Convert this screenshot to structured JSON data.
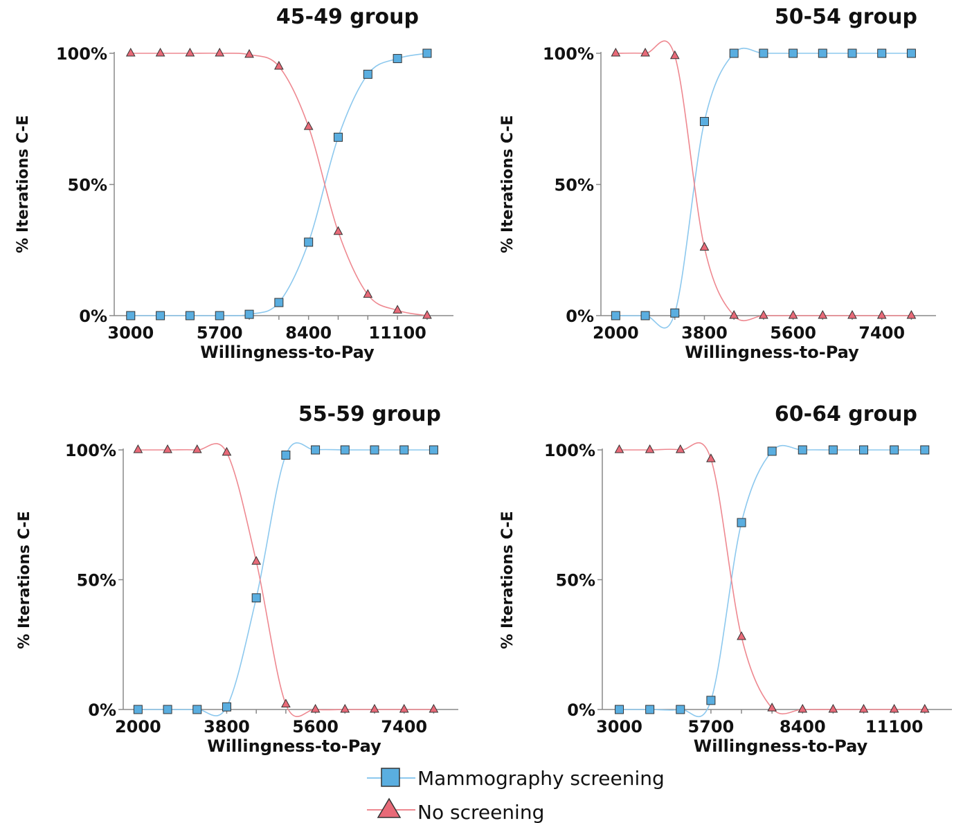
{
  "colors": {
    "mammography": "#5aaee0",
    "mammography_line": "#8cc8ee",
    "no_screening": "#e86a78",
    "no_screening_line": "#ee8890",
    "axis": "#888888",
    "marker_edge": "#333333"
  },
  "legend": {
    "items": [
      {
        "label": "Mammography screening",
        "marker": "square",
        "color": "#5aaee0"
      },
      {
        "label": "No screening",
        "marker": "triangle",
        "color": "#e86a78"
      }
    ]
  },
  "chart_data": [
    {
      "type": "line",
      "title": "45-49 group",
      "xlabel": "Willingness-to-Pay",
      "ylabel": "% Iterations C-E",
      "xlim": [
        2500,
        12800
      ],
      "ylim": [
        0,
        100
      ],
      "xticks": [
        "3000",
        "5700",
        "8400",
        "11100"
      ],
      "yticks": [
        "0%",
        "50%",
        "100%"
      ],
      "x": [
        3000,
        3900,
        4800,
        5700,
        6600,
        7500,
        8400,
        9300,
        10200,
        11100,
        12000
      ],
      "series": [
        {
          "name": "Mammography screening",
          "marker": "square",
          "values": [
            0,
            0,
            0,
            0,
            0.5,
            5,
            28,
            68,
            92,
            98,
            100
          ]
        },
        {
          "name": "No screening",
          "marker": "triangle",
          "values": [
            100,
            100,
            100,
            100,
            99.5,
            95,
            72,
            32,
            8,
            2,
            0
          ]
        }
      ]
    },
    {
      "type": "line",
      "title": "50-54 group",
      "xlabel": "Willingness-to-Pay",
      "ylabel": "% Iterations C-E",
      "xlim": [
        1700,
        8500
      ],
      "ylim": [
        0,
        100
      ],
      "xticks": [
        "2000",
        "3800",
        "5600",
        "7400"
      ],
      "yticks": [
        "0%",
        "50%",
        "100%"
      ],
      "x": [
        2000,
        2600,
        3200,
        3800,
        4400,
        5000,
        5600,
        6200,
        6800,
        7400,
        8000
      ],
      "series": [
        {
          "name": "Mammography screening",
          "marker": "square",
          "values": [
            0,
            0,
            1,
            74,
            100,
            100,
            100,
            100,
            100,
            100,
            100
          ]
        },
        {
          "name": "No screening",
          "marker": "triangle",
          "values": [
            100,
            100,
            99,
            26,
            0,
            0,
            0,
            0,
            0,
            0,
            0
          ]
        }
      ]
    },
    {
      "type": "line",
      "title": "55-59 group",
      "xlabel": "Willingness-to-Pay",
      "ylabel": "% Iterations C-E",
      "xlim": [
        1700,
        8500
      ],
      "ylim": [
        0,
        100
      ],
      "xticks": [
        "2000",
        "3800",
        "5600",
        "7400"
      ],
      "yticks": [
        "0%",
        "50%",
        "100%"
      ],
      "x": [
        2000,
        2600,
        3200,
        3800,
        4400,
        5000,
        5600,
        6200,
        6800,
        7400,
        8000
      ],
      "series": [
        {
          "name": "Mammography screening",
          "marker": "square",
          "values": [
            0,
            0,
            0,
            1,
            43,
            98,
            100,
            100,
            100,
            100,
            100
          ]
        },
        {
          "name": "No screening",
          "marker": "triangle",
          "values": [
            100,
            100,
            100,
            99,
            57,
            2,
            0,
            0,
            0,
            0,
            0
          ]
        }
      ]
    },
    {
      "type": "line",
      "title": "60-64 group",
      "xlabel": "Willingness-to-Pay",
      "ylabel": "% Iterations C-E",
      "xlim": [
        2500,
        12800
      ],
      "ylim": [
        0,
        100
      ],
      "xticks": [
        "3000",
        "5700",
        "8400",
        "11100"
      ],
      "yticks": [
        "0%",
        "50%",
        "100%"
      ],
      "x": [
        3000,
        3900,
        4800,
        5700,
        6600,
        7500,
        8400,
        9300,
        10200,
        11100,
        12000
      ],
      "series": [
        {
          "name": "Mammography screening",
          "marker": "square",
          "values": [
            0,
            0,
            0,
            3.5,
            72,
            99.5,
            100,
            100,
            100,
            100,
            100
          ]
        },
        {
          "name": "No screening",
          "marker": "triangle",
          "values": [
            100,
            100,
            100,
            96.5,
            28,
            0.5,
            0,
            0,
            0,
            0,
            0
          ]
        }
      ]
    }
  ]
}
